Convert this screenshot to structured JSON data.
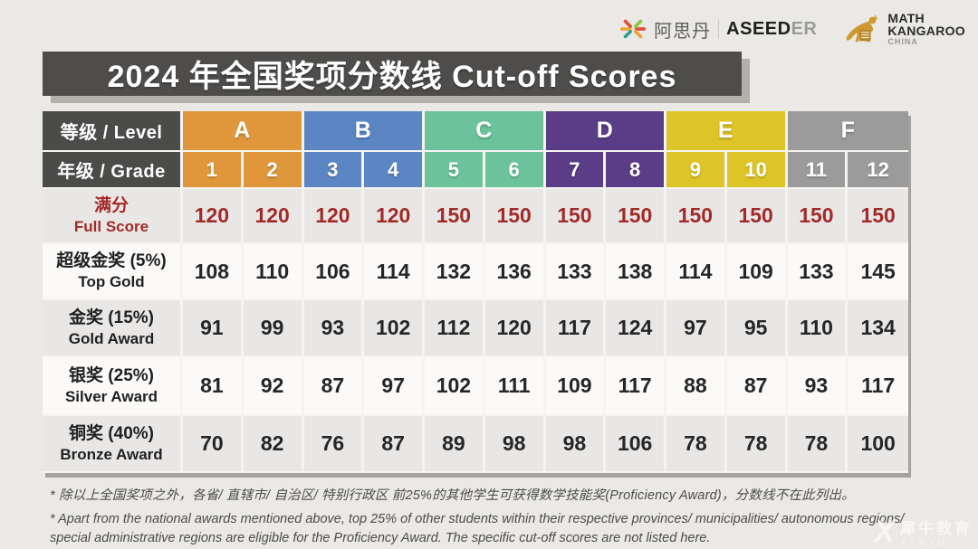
{
  "brand": {
    "aseedan": {
      "cn": "阿思丹",
      "en_dark": "ASEED",
      "en_gray": "ER",
      "icon": "aseedan-star-icon"
    },
    "kangaroo": {
      "line1": "MATH",
      "line2": "KANGAROO",
      "line3": "CHINA",
      "icon": "kangaroo-icon"
    }
  },
  "banner": {
    "title": "2024 年全国奖项分数线 Cut-off Scores"
  },
  "table": {
    "level_header": "等级 / Level",
    "grade_header": "年级 / Grade",
    "levels": [
      {
        "label": "A",
        "color": "#e0973c",
        "grades": [
          "1",
          "2"
        ]
      },
      {
        "label": "B",
        "color": "#5c86c3",
        "grades": [
          "3",
          "4"
        ]
      },
      {
        "label": "C",
        "color": "#6cc39b",
        "grades": [
          "5",
          "6"
        ]
      },
      {
        "label": "D",
        "color": "#5b3d87",
        "grades": [
          "7",
          "8"
        ]
      },
      {
        "label": "E",
        "color": "#ddc427",
        "grades": [
          "9",
          "10"
        ]
      },
      {
        "label": "F",
        "color": "#9c9b9b",
        "grades": [
          "11",
          "12"
        ]
      }
    ],
    "rows": [
      {
        "name_cn": "满分",
        "name_en": "Full Score",
        "style": "fullscore",
        "values": [
          120,
          120,
          120,
          120,
          150,
          150,
          150,
          150,
          150,
          150,
          150,
          150
        ]
      },
      {
        "name_cn": "超级金奖 (5%)",
        "name_en": "Top Gold",
        "style": "normal",
        "values": [
          108,
          110,
          106,
          114,
          132,
          136,
          133,
          138,
          114,
          109,
          133,
          145
        ]
      },
      {
        "name_cn": "金奖 (15%)",
        "name_en": "Gold Award",
        "style": "normal",
        "values": [
          91,
          99,
          93,
          102,
          112,
          120,
          117,
          124,
          97,
          95,
          110,
          134
        ]
      },
      {
        "name_cn": "银奖 (25%)",
        "name_en": "Silver Award",
        "style": "normal",
        "values": [
          81,
          92,
          87,
          97,
          102,
          111,
          109,
          117,
          88,
          87,
          93,
          117
        ]
      },
      {
        "name_cn": "铜奖 (40%)",
        "name_en": "Bronze Award",
        "style": "normal",
        "values": [
          70,
          82,
          76,
          87,
          89,
          98,
          98,
          106,
          78,
          78,
          78,
          100
        ]
      }
    ]
  },
  "footnotes": {
    "cn": "* 除以上全国奖项之外，各省/ 直辖市/ 自治区/ 特别行政区 前25%的其他学生可获得数学技能奖(Proficiency Award)，分数线不在此列出。",
    "en_line1": "* Apart from the national awards mentioned above, top 25% of other students within their respective provinces/ municipalities/ autonomous regions/",
    "en_line2": "special administrative regions are eligible for the Proficiency Award. The specific cut-off scores are not listed here."
  },
  "watermark": {
    "cn": "犀牛教育",
    "en": "X-NIU",
    "x_glyph": "X"
  },
  "colors": {
    "page_bg": "#ebe9e6",
    "banner_bg": "#4e4d4b",
    "header_dark": "#4b4b4a",
    "fullscore_red": "#a12b29",
    "row_gray": "#e9e7e6",
    "row_white": "#fbfaf9",
    "kangaroo_gold": "#d0992e"
  }
}
